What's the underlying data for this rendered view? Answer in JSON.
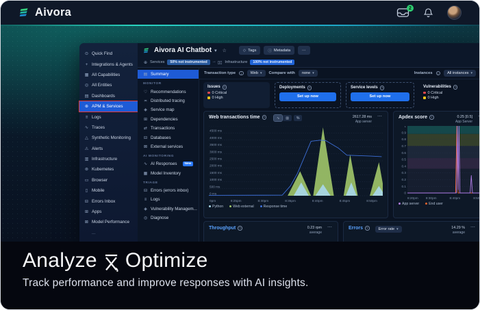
{
  "topbar": {
    "brand": "Aivora",
    "inbox_badge": "2"
  },
  "hero": {
    "heading_pre": "Analyze",
    "heading_amp": "&",
    "heading_post": "Optimize",
    "subtitle": "Track performance and improve responses with AI insights."
  },
  "sidebar": {
    "items": [
      {
        "label": "Quick Find",
        "icon": "search"
      },
      {
        "label": "Integrations & Agents",
        "icon": "plus"
      },
      {
        "label": "All Capabilities",
        "icon": "grid"
      },
      {
        "label": "All Entities",
        "icon": "entities"
      },
      {
        "label": "Dashboards",
        "icon": "dashboards"
      },
      {
        "label": "APM & Services",
        "icon": "globe",
        "active": true,
        "annotated": true
      },
      {
        "label": "Logs",
        "icon": "file"
      },
      {
        "label": "Traces",
        "icon": "traces"
      },
      {
        "label": "Synthetic Monitoring",
        "icon": "synthetic"
      },
      {
        "label": "Alerts",
        "icon": "alert"
      },
      {
        "label": "Infrastructure",
        "icon": "infrastructure"
      },
      {
        "label": "Kubernetes",
        "icon": "helm"
      },
      {
        "label": "Browser",
        "icon": "browser"
      },
      {
        "label": "Mobile",
        "icon": "mobile"
      },
      {
        "label": "Errors Inbox",
        "icon": "inbox"
      },
      {
        "label": "Apps",
        "icon": "apps"
      },
      {
        "label": "Model Performance",
        "icon": "model"
      },
      {
        "label": "...",
        "icon": "none",
        "dim": true
      }
    ]
  },
  "entity": {
    "title": "Aivora AI Chatbot",
    "tags": "Tags",
    "metadata": "Metadata",
    "more": "⋯",
    "services_label": "Services",
    "services_badge": "50% not instrumented",
    "infra_label": "Infrastructure",
    "infra_badge": "100% not instrumented"
  },
  "subnav": {
    "items": [
      {
        "type": "item",
        "label": "Summary",
        "icon": "summary",
        "active": true
      },
      {
        "type": "section",
        "label": "MONITOR"
      },
      {
        "type": "item",
        "label": "Recommendations",
        "icon": "recommend"
      },
      {
        "type": "item",
        "label": "Distributed tracing",
        "icon": "tracing"
      },
      {
        "type": "item",
        "label": "Service map",
        "icon": "map"
      },
      {
        "type": "item",
        "label": "Dependencies",
        "icon": "dependencies"
      },
      {
        "type": "item",
        "label": "Transactions",
        "icon": "transactions"
      },
      {
        "type": "item",
        "label": "Databases",
        "icon": "database"
      },
      {
        "type": "item",
        "label": "External services",
        "icon": "external"
      },
      {
        "type": "section",
        "label": "AI MONITORING"
      },
      {
        "type": "item",
        "label": "AI Responses",
        "icon": "ai",
        "badge": "New"
      },
      {
        "type": "item",
        "label": "Model Inventory",
        "icon": "inventory"
      },
      {
        "type": "section",
        "label": "TRIAGE"
      },
      {
        "type": "item",
        "label": "Errors (errors inbox)",
        "icon": "inbox"
      },
      {
        "type": "item",
        "label": "Logs",
        "icon": "file"
      },
      {
        "type": "item",
        "label": "Vulnerability Managem...",
        "icon": "shield"
      },
      {
        "type": "item",
        "label": "Diagnose",
        "icon": "diagnose"
      }
    ]
  },
  "filters": {
    "transaction_type_label": "Transaction type",
    "transaction_type_value": "Web",
    "compare_label": "Compare with",
    "compare_value": "none",
    "instances_label": "Instances",
    "instances_value": "All instances"
  },
  "status_cards": [
    {
      "title": "Issues",
      "kind": "solid",
      "items": [
        {
          "color": "#e5484d",
          "text": "0 Critical"
        },
        {
          "color": "#f0c419",
          "text": "0 High"
        }
      ]
    },
    {
      "title": "Deployments",
      "kind": "setup",
      "button": "Set up now"
    },
    {
      "title": "Service levels",
      "kind": "setup",
      "button": "Set up now"
    },
    {
      "title": "Vulnerabilities",
      "kind": "plain",
      "items": [
        {
          "color": "#e5484d",
          "text": "0 Critical"
        },
        {
          "color": "#f0c419",
          "text": "0 High"
        }
      ]
    }
  ],
  "chart_data": [
    {
      "type": "area",
      "title": "Web transactions time",
      "value_label": "2617.28 ms",
      "value_sub": "App server",
      "ylim": [
        0,
        5000
      ],
      "ytick_step": 500,
      "tick_suffix": " ms",
      "x_domain_minutes": [
        0,
        32
      ],
      "x_tick_minutes": [
        0,
        5,
        10,
        15,
        20,
        25,
        30
      ],
      "x_ticks": [
        "0pm",
        "8:25pm",
        "8:30pm",
        "8:35pm",
        "8:40pm",
        "8:45pm",
        "8:50pm"
      ],
      "grid": true,
      "series": [
        {
          "name": "Web external",
          "color": "#9dc368",
          "kind": "area",
          "points": [
            [
              0,
              0
            ],
            [
              14.5,
              0
            ],
            [
              16.8,
              1750
            ],
            [
              18.8,
              0
            ],
            [
              19.2,
              0
            ],
            [
              21,
              4900
            ],
            [
              23,
              0
            ],
            [
              24.8,
              0
            ],
            [
              26,
              2950
            ],
            [
              27.4,
              0
            ],
            [
              29.6,
              0
            ],
            [
              31.3,
              2400
            ],
            [
              32.4,
              0
            ]
          ]
        },
        {
          "name": "Python",
          "color": "#a9d7e8",
          "kind": "area",
          "points": [
            [
              0,
              0
            ],
            [
              15.6,
              0
            ],
            [
              17,
              950
            ],
            [
              18.4,
              0
            ],
            [
              19.6,
              0
            ],
            [
              21,
              820
            ],
            [
              22.4,
              0
            ],
            [
              25.2,
              0
            ],
            [
              26.2,
              950
            ],
            [
              27.2,
              0
            ],
            [
              30.1,
              0
            ],
            [
              31.3,
              700
            ],
            [
              32.4,
              0
            ]
          ]
        },
        {
          "name": "Response time",
          "color": "#3d6fd8",
          "kind": "line",
          "points": [
            [
              0,
              30
            ],
            [
              13.5,
              40
            ],
            [
              15,
              700
            ],
            [
              16.3,
              1600
            ],
            [
              18.8,
              3900
            ],
            [
              20.5,
              3980
            ],
            [
              21.5,
              3950
            ],
            [
              23.8,
              3420
            ],
            [
              25.4,
              2900
            ],
            [
              29.8,
              2840
            ],
            [
              31.8,
              2800
            ]
          ]
        }
      ],
      "legend": [
        {
          "name": "Python",
          "color": "#a9d7e8"
        },
        {
          "name": "Web external",
          "color": "#9dc368"
        },
        {
          "name": "Response time",
          "color": "#3d6fd8"
        }
      ]
    },
    {
      "type": "line",
      "title": "Apdex score",
      "value_label": "0.25 [0.5]",
      "value_sub": "App Server",
      "ylim": [
        0,
        1
      ],
      "ytick_step": 0.1,
      "x_domain_minutes": [
        0,
        32
      ],
      "x_tick_minutes": [
        0,
        10,
        20,
        30
      ],
      "x_ticks": [
        "8:20pm",
        "8:30pm",
        "8:40pm",
        "8:50pm"
      ],
      "grid": true,
      "bands": [
        {
          "from": 0.88,
          "to": 1.0,
          "color": "#14484b"
        },
        {
          "from": 0.7,
          "to": 0.88,
          "color": "#333f2b"
        },
        {
          "from": 0.52,
          "to": 0.7,
          "color": "#1c2739"
        },
        {
          "from": 0.36,
          "to": 0.52,
          "color": "#2c2640"
        },
        {
          "from": 0.0,
          "to": 0.36,
          "color": "#161e2f"
        }
      ],
      "series": [
        {
          "name": "End user",
          "color": "#e8642c",
          "kind": "line",
          "points": [
            [
              0,
              0
            ],
            [
              20.3,
              0
            ],
            [
              20.8,
              1
            ],
            [
              21.3,
              0
            ],
            [
              32,
              0
            ]
          ]
        },
        {
          "name": "App server",
          "color": "#b07ce8",
          "kind": "line",
          "points": [
            [
              0,
              0
            ],
            [
              20.6,
              0
            ],
            [
              21.0,
              1
            ],
            [
              21.35,
              0.05
            ],
            [
              21.7,
              1
            ],
            [
              22.1,
              0
            ],
            [
              26.4,
              0
            ],
            [
              26.9,
              0.26
            ],
            [
              27.4,
              0
            ],
            [
              32,
              0
            ]
          ]
        }
      ],
      "legend": [
        {
          "name": "App server",
          "color": "#b07ce8"
        },
        {
          "name": "End user",
          "color": "#e8642c"
        }
      ]
    }
  ],
  "bottom_cards": [
    {
      "title": "Throughput",
      "value": "0.23 rpm",
      "sub": "average"
    },
    {
      "title": "Errors",
      "dropdown": "Error rate",
      "value": "14.29 %",
      "sub": "average"
    }
  ]
}
